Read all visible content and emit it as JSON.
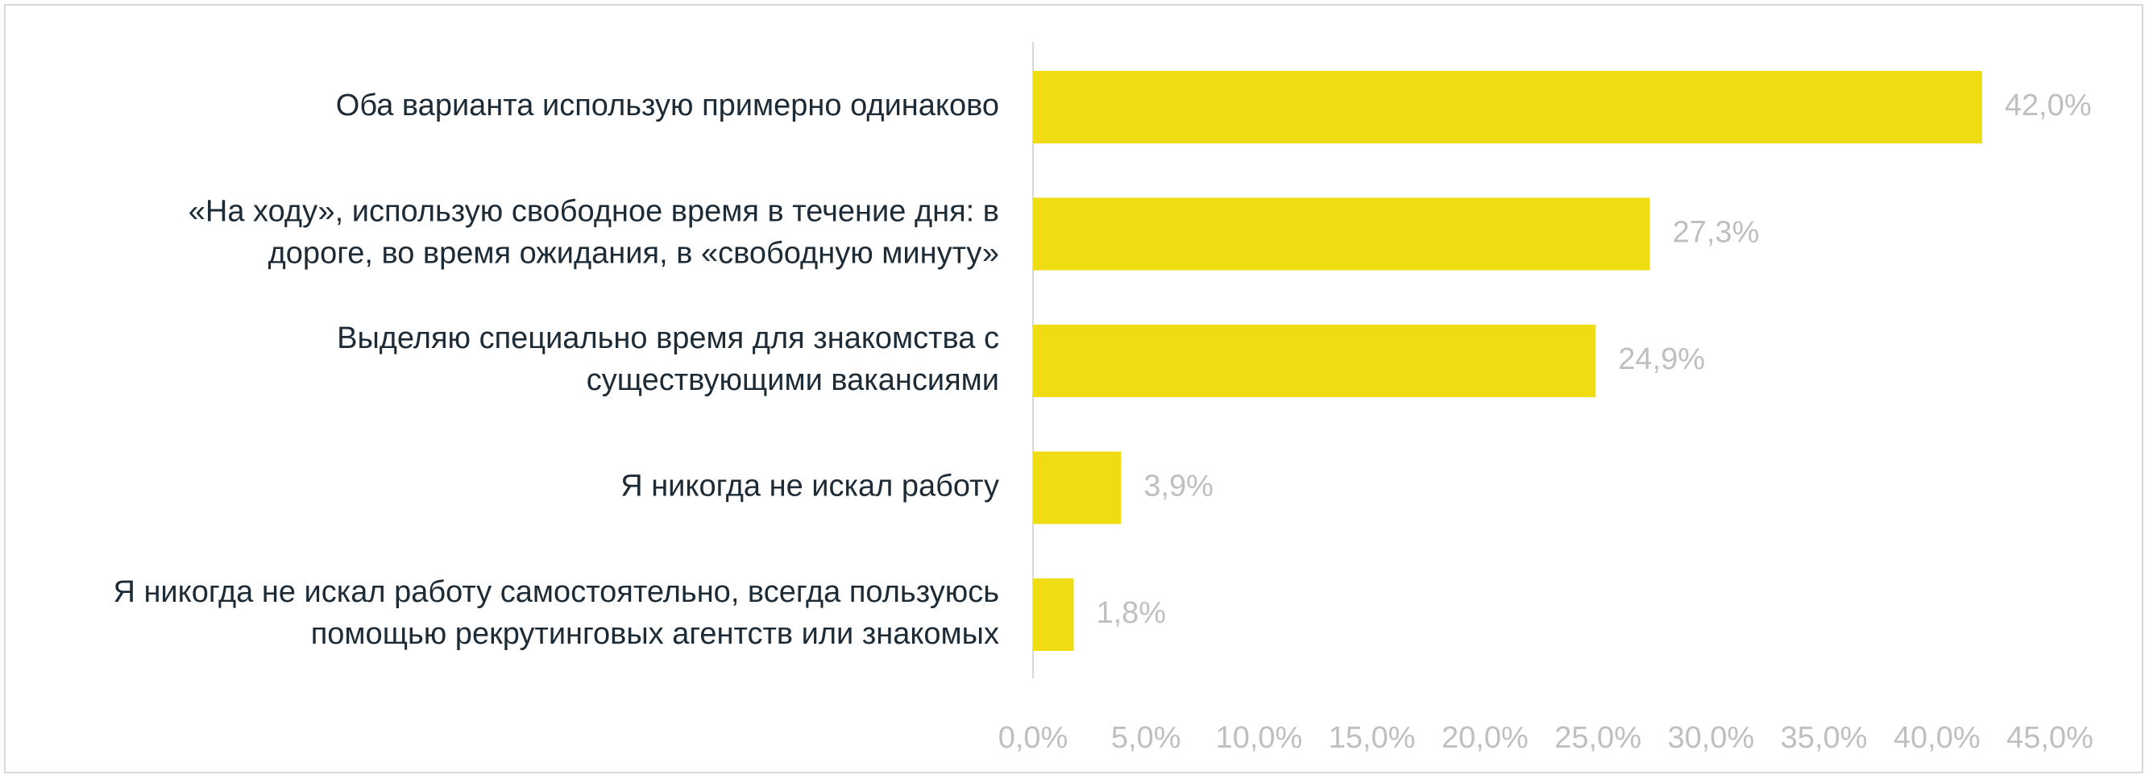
{
  "chart_data": {
    "type": "bar",
    "orientation": "horizontal",
    "title": "",
    "xlabel": "",
    "ylabel": "",
    "categories": [
      "Оба варианта использую примерно одинаково",
      "«На ходу», использую свободное время в течение дня: в дороге, во время ожидания, в «свободную минуту»",
      "Выделяю специально время для знакомства с существующими вакансиями",
      "Я никогда не искал работу",
      "Я никогда не искал работу самостоятельно, всегда пользуюсь помощью рекрутинговых агентств или знакомых"
    ],
    "category_lines": [
      [
        "Оба варианта использую примерно одинаково"
      ],
      [
        "«На ходу», использую свободное время в течение дня: в",
        "дороге, во время ожидания, в «свободную минуту»"
      ],
      [
        "Выделяю специально время для знакомства с",
        "существующими вакансиями"
      ],
      [
        "Я никогда не искал работу"
      ],
      [
        "Я никогда не искал работу самостоятельно, всегда пользуюсь",
        "помощью рекрутинговых агентств или знакомых"
      ]
    ],
    "values": [
      42.0,
      27.3,
      24.9,
      3.9,
      1.8
    ],
    "value_labels": [
      "42,0%",
      "27,3%",
      "24,9%",
      "3,9%",
      "1,8%"
    ],
    "xlim": [
      0,
      45
    ],
    "ticks": [
      0,
      5,
      10,
      15,
      20,
      25,
      30,
      35,
      40,
      45
    ],
    "tick_labels": [
      "0,0%",
      "5,0%",
      "10,0%",
      "15,0%",
      "20,0%",
      "25,0%",
      "30,0%",
      "35,0%",
      "40,0%",
      "45,0%"
    ],
    "grid": false,
    "legend": "none",
    "colors": {
      "bar": "#f0dc12",
      "category_text": "#1d2b36",
      "value_text": "#bfbfbf",
      "tick_text": "#bfbfbf",
      "axis_line": "#d9d9d9",
      "border": "#d9d9d9"
    }
  }
}
